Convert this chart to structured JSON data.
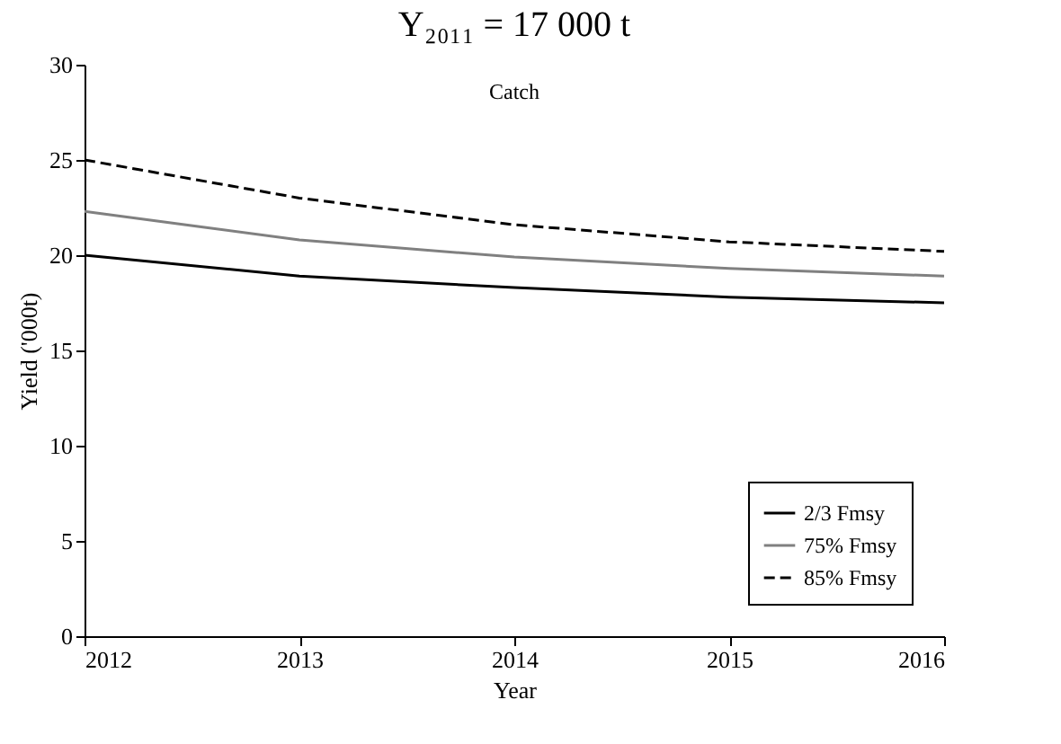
{
  "chart_data": {
    "type": "line",
    "title": "Y₂₀₁₁ = 17 000 t",
    "xlabel": "Year",
    "ylabel": "Yield ('000t)",
    "annotations": [
      "Catch"
    ],
    "x": [
      2012,
      2013,
      2014,
      2015,
      2016
    ],
    "series": [
      {
        "name": "2/3 Fmsy",
        "color": "#000000",
        "line_style": "solid",
        "values": [
          20.0,
          18.9,
          18.3,
          17.8,
          17.5
        ]
      },
      {
        "name": "75% Fmsy",
        "color": "#808080",
        "line_style": "solid",
        "values": [
          22.3,
          20.8,
          19.9,
          19.3,
          18.9
        ]
      },
      {
        "name": "85% Fmsy",
        "color": "#000000",
        "line_style": "dashed",
        "values": [
          25.0,
          23.0,
          21.6,
          20.7,
          20.2
        ]
      }
    ],
    "xlim": [
      2012,
      2016
    ],
    "xticks": [
      2012,
      2013,
      2014,
      2015,
      2016
    ],
    "ylim": [
      0,
      30
    ],
    "yticks": [
      0,
      5,
      10,
      15,
      20,
      25,
      30
    ],
    "grid": false,
    "legend": "bottom right",
    "marker": "none"
  }
}
